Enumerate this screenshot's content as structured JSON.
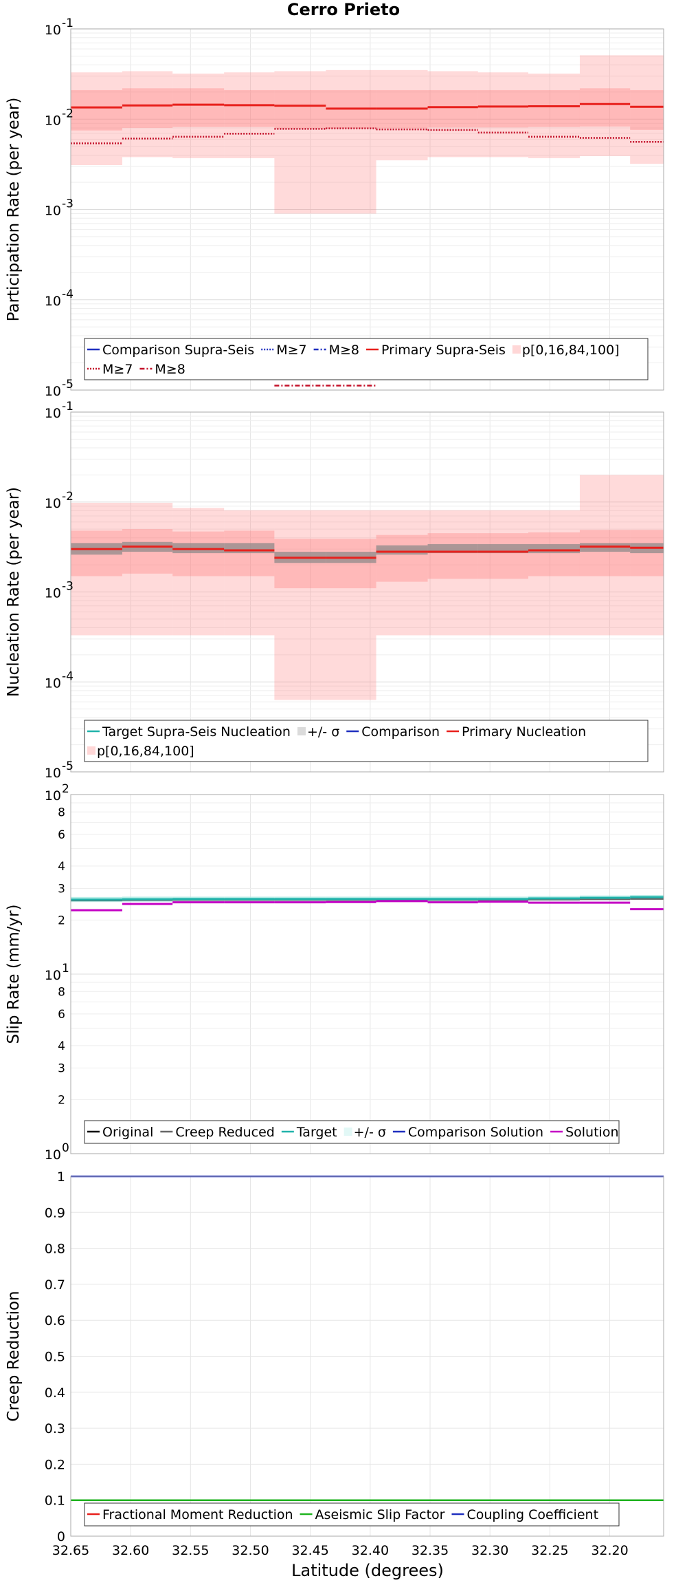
{
  "title": "Cerro Prieto",
  "xaxis": {
    "label": "Latitude (degrees)",
    "range": [
      32.65,
      32.155
    ],
    "ticks": [
      32.65,
      32.6,
      32.55,
      32.5,
      32.45,
      32.4,
      32.35,
      32.3,
      32.25,
      32.2
    ],
    "tick_labels": [
      "32.65",
      "32.60",
      "32.55",
      "32.50",
      "32.45",
      "32.40",
      "32.35",
      "32.30",
      "32.25",
      "32.20"
    ]
  },
  "chart_data": [
    {
      "type": "line",
      "name": "participation",
      "ylabel": "Participation Rate (per year)",
      "yscale": "log",
      "ylim": [
        1e-05,
        0.1
      ],
      "ytick_exponents": [
        "1",
        "2",
        "3",
        "4",
        "5"
      ],
      "segments": [
        [
          32.65,
          32.607
        ],
        [
          32.607,
          32.565
        ],
        [
          32.565,
          32.522
        ],
        [
          32.522,
          32.48
        ],
        [
          32.48,
          32.437
        ],
        [
          32.437,
          32.395
        ],
        [
          32.395,
          32.352
        ],
        [
          32.352,
          32.31
        ],
        [
          32.31,
          32.268
        ],
        [
          32.268,
          32.225
        ],
        [
          32.225,
          32.183
        ],
        [
          32.183,
          32.155
        ]
      ],
      "series": [
        {
          "name": "Comparison Supra-Seis",
          "color": "#1f2fbf",
          "style": "solid",
          "values": []
        },
        {
          "name": "M≥7",
          "color": "#1f2fbf",
          "style": "dotted",
          "values": []
        },
        {
          "name": "M≥8",
          "color": "#1f2fbf",
          "style": "dashdot",
          "values": []
        },
        {
          "name": "Primary Supra-Seis",
          "color": "#e8201c",
          "style": "solid",
          "values": [
            0.0135,
            0.0142,
            0.0145,
            0.0143,
            0.0141,
            0.0131,
            0.0131,
            0.0136,
            0.0138,
            0.0139,
            0.0147,
            0.0137
          ]
        },
        {
          "name": "M≥7",
          "color": "#c4122a",
          "style": "dotted",
          "values": [
            0.0054,
            0.0061,
            0.0064,
            0.0069,
            0.0078,
            0.0079,
            0.0077,
            0.0076,
            0.0071,
            0.0064,
            0.0062,
            0.0056
          ]
        },
        {
          "name": "M≥8",
          "color": "#c4122a",
          "style": "dashdot",
          "values": [
            null,
            null,
            null,
            null,
            1.12e-05,
            1.12e-05,
            null,
            null,
            null,
            null,
            null,
            null
          ]
        }
      ],
      "bands": {
        "name": "p[0,16,84,100]",
        "color": "#ff7a7a",
        "p0": [
          0.0031,
          0.0038,
          0.0037,
          0.0037,
          0.0009,
          0.0009,
          0.0035,
          0.0038,
          0.0038,
          0.0037,
          0.0039,
          0.0032
        ],
        "p16": [
          0.0075,
          0.008,
          0.0082,
          0.0082,
          0.0079,
          0.0079,
          0.0079,
          0.0081,
          0.0081,
          0.0082,
          0.0083,
          0.0076
        ],
        "p84": [
          0.021,
          0.022,
          0.022,
          0.021,
          0.021,
          0.021,
          0.021,
          0.021,
          0.021,
          0.021,
          0.022,
          0.021
        ],
        "p100": [
          0.033,
          0.034,
          0.032,
          0.033,
          0.034,
          0.035,
          0.035,
          0.034,
          0.033,
          0.032,
          0.051,
          0.051
        ]
      },
      "legend": {
        "row1": [
          "Comparison Supra-Seis",
          "M≥7",
          "M≥8",
          "Primary Supra-Seis",
          "p[0,16,84,100]"
        ],
        "row2": [
          "M≥7",
          "M≥8"
        ]
      }
    },
    {
      "type": "line",
      "name": "nucleation",
      "ylabel": "Nucleation Rate (per year)",
      "yscale": "log",
      "ylim": [
        1e-05,
        0.1
      ],
      "ytick_exponents": [
        "1",
        "2",
        "3",
        "4",
        "5"
      ],
      "segments": [
        [
          32.65,
          32.607
        ],
        [
          32.607,
          32.565
        ],
        [
          32.565,
          32.522
        ],
        [
          32.522,
          32.48
        ],
        [
          32.48,
          32.437
        ],
        [
          32.437,
          32.395
        ],
        [
          32.395,
          32.352
        ],
        [
          32.352,
          32.31
        ],
        [
          32.31,
          32.268
        ],
        [
          32.268,
          32.225
        ],
        [
          32.225,
          32.183
        ],
        [
          32.183,
          32.155
        ]
      ],
      "series": [
        {
          "name": "Target Supra-Seis Nucleation",
          "color": "#20b2aa",
          "style": "solid",
          "values": []
        },
        {
          "name": "Comparison",
          "color": "#1f2fbf",
          "style": "solid",
          "values": []
        },
        {
          "name": "Primary Nucleation",
          "color": "#e8201c",
          "style": "solid",
          "values": [
            0.003,
            0.0032,
            0.003,
            0.0029,
            0.0024,
            0.0024,
            0.0028,
            0.0028,
            0.0028,
            0.0029,
            0.0032,
            0.0031
          ]
        }
      ],
      "target_band": {
        "name": "+/- σ",
        "color": "#888888",
        "low": [
          0.0026,
          0.0028,
          0.0027,
          0.0027,
          0.0021,
          0.0021,
          0.0026,
          0.0027,
          0.0027,
          0.0027,
          0.0028,
          0.0027
        ],
        "high": [
          0.0035,
          0.0036,
          0.0035,
          0.0035,
          0.0028,
          0.0028,
          0.0033,
          0.0034,
          0.0034,
          0.0034,
          0.0035,
          0.0035
        ]
      },
      "bands": {
        "name": "p[0,16,84,100]",
        "color": "#ff7a7a",
        "p0": [
          0.00033,
          0.00033,
          0.00033,
          0.00033,
          6.3e-05,
          6.3e-05,
          0.00033,
          0.00033,
          0.00033,
          0.00033,
          0.00033,
          0.00033
        ],
        "p16": [
          0.0015,
          0.0016,
          0.0015,
          0.0015,
          0.0011,
          0.0011,
          0.0013,
          0.0014,
          0.0014,
          0.0015,
          0.0015,
          0.0015
        ],
        "p84": [
          0.0048,
          0.005,
          0.0047,
          0.0048,
          0.0039,
          0.0039,
          0.0043,
          0.0045,
          0.0045,
          0.0046,
          0.0049,
          0.0049
        ],
        "p100": [
          0.0098,
          0.0098,
          0.0086,
          0.0081,
          0.0081,
          0.0081,
          0.0081,
          0.0081,
          0.0081,
          0.0081,
          0.02,
          0.02
        ]
      },
      "legend": {
        "row1": [
          "Target Supra-Seis Nucleation",
          "+/- σ",
          "Comparison",
          "Primary Nucleation"
        ],
        "row2": [
          "p[0,16,84,100]"
        ]
      }
    },
    {
      "type": "line",
      "name": "slip",
      "ylabel": "Slip Rate (mm/yr)",
      "yscale": "log",
      "ylim": [
        1,
        100
      ],
      "ytick_exponents": [
        "2",
        "1",
        "0"
      ],
      "minor_ticks": [
        2,
        3,
        4,
        6,
        8,
        20,
        30,
        40,
        60,
        80
      ],
      "minor_tick_labels": [
        "2",
        "3",
        "4",
        "6",
        "8",
        "2",
        "3",
        "4",
        "6",
        "8"
      ],
      "segments": [
        [
          32.65,
          32.607
        ],
        [
          32.607,
          32.565
        ],
        [
          32.565,
          32.522
        ],
        [
          32.522,
          32.48
        ],
        [
          32.48,
          32.437
        ],
        [
          32.437,
          32.395
        ],
        [
          32.395,
          32.352
        ],
        [
          32.352,
          32.31
        ],
        [
          32.31,
          32.268
        ],
        [
          32.268,
          32.225
        ],
        [
          32.225,
          32.183
        ],
        [
          32.183,
          32.155
        ]
      ],
      "series": [
        {
          "name": "Original",
          "color": "#000000",
          "style": "solid",
          "values": []
        },
        {
          "name": "Creep Reduced",
          "color": "#666666",
          "style": "solid",
          "values": [
            25.8,
            25.9,
            26.0,
            26.0,
            26.0,
            26.0,
            26.0,
            26.0,
            26.0,
            26.1,
            26.2,
            26.3
          ]
        },
        {
          "name": "Target",
          "color": "#20b2aa",
          "style": "solid",
          "values": [
            26.0,
            26.1,
            26.2,
            26.2,
            26.2,
            26.2,
            26.2,
            26.2,
            26.2,
            26.4,
            26.6,
            26.8
          ]
        },
        {
          "name": "Comparison Solution",
          "color": "#1f2fbf",
          "style": "solid",
          "values": []
        },
        {
          "name": "Solution",
          "color": "#c400c4",
          "style": "solid",
          "values": [
            22.7,
            24.6,
            25.1,
            25.1,
            25.1,
            25.2,
            25.5,
            25.1,
            25.3,
            25.0,
            25.0,
            23.0
          ]
        }
      ],
      "target_band": {
        "name": "+/- σ",
        "color": "#9ee8e0",
        "low": [
          25.2,
          25.3,
          25.4,
          25.4,
          25.4,
          25.4,
          25.4,
          25.4,
          25.4,
          25.6,
          25.8,
          26.0
        ],
        "high": [
          26.9,
          27.0,
          27.0,
          27.0,
          27.0,
          27.0,
          27.0,
          27.0,
          27.0,
          27.2,
          27.4,
          27.6
        ]
      },
      "legend": {
        "row1": [
          "Original",
          "Creep Reduced",
          "Target",
          "+/- σ",
          "Comparison Solution",
          "Solution"
        ]
      }
    },
    {
      "type": "line",
      "name": "creep",
      "ylabel": "Creep Reduction",
      "yscale": "linear",
      "ylim": [
        0,
        1
      ],
      "ytick_labels": [
        "0",
        "0.1",
        "0.2",
        "0.3",
        "0.4",
        "0.5",
        "0.6",
        "0.7",
        "0.8",
        "0.9",
        "1"
      ],
      "series": [
        {
          "name": "Fractional Moment Reduction",
          "color": "#e8201c",
          "style": "solid",
          "values": [
            0.1,
            0.1
          ]
        },
        {
          "name": "Aseismic Slip Factor",
          "color": "#1fb31f",
          "style": "solid",
          "values": [
            0.1,
            0.1
          ]
        },
        {
          "name": "Coupling Coefficient",
          "color": "#1f2fbf",
          "style": "solid",
          "values": [
            1,
            1
          ]
        }
      ],
      "legend": {
        "row1": [
          "Fractional Moment Reduction",
          "Aseismic Slip Factor",
          "Coupling Coefficient"
        ]
      }
    }
  ]
}
